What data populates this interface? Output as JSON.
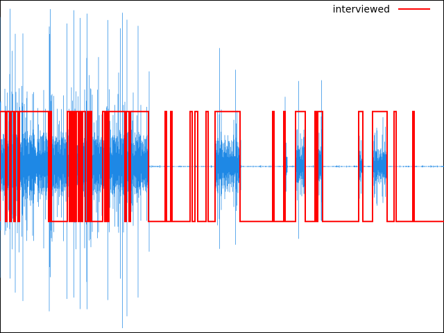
{
  "chart_data": {
    "type": "line",
    "title": "",
    "xlabel": "",
    "ylabel": "",
    "grid": false,
    "legend_position": "top-right",
    "xlim": [
      0,
      640
    ],
    "ylim": [
      -1.0,
      1.0
    ],
    "colors": {
      "waveform": "#1e88e5",
      "labels": "#ff0000",
      "frame": "#000000",
      "background": "#ffffff"
    },
    "series": [
      {
        "name": "interviewed",
        "kind": "binary-step",
        "low": -0.33,
        "high": 0.33,
        "on_intervals": [
          [
            0,
            8
          ],
          [
            10,
            14
          ],
          [
            16,
            20
          ],
          [
            22,
            26
          ],
          [
            28,
            70
          ],
          [
            72,
            74
          ],
          [
            97,
            100
          ],
          [
            102,
            104
          ],
          [
            106,
            108
          ],
          [
            110,
            113
          ],
          [
            115,
            117
          ],
          [
            119,
            123
          ],
          [
            126,
            128
          ],
          [
            130,
            132
          ],
          [
            148,
            151
          ],
          [
            153,
            155
          ],
          [
            157,
            180
          ],
          [
            182,
            186
          ],
          [
            188,
            214
          ],
          [
            238,
            240
          ],
          [
            246,
            248
          ],
          [
            274,
            277
          ],
          [
            281,
            285
          ],
          [
            297,
            300
          ],
          [
            310,
            346
          ],
          [
            393,
            395
          ],
          [
            409,
            411
          ],
          [
            426,
            440
          ],
          [
            454,
            456
          ],
          [
            458,
            465
          ],
          [
            517,
            523
          ],
          [
            537,
            558
          ],
          [
            568,
            571
          ],
          [
            595,
            597
          ]
        ]
      },
      {
        "kind": "waveform",
        "baseline": 0,
        "bursts": [
          {
            "start": 0,
            "end": 215,
            "amplitude": 0.95
          },
          {
            "start": 310,
            "end": 347,
            "amplitude": 0.75
          },
          {
            "start": 409,
            "end": 414,
            "amplitude": 0.45
          },
          {
            "start": 426,
            "end": 440,
            "amplitude": 0.6
          },
          {
            "start": 454,
            "end": 465,
            "amplitude": 0.65
          },
          {
            "start": 517,
            "end": 523,
            "amplitude": 0.5
          },
          {
            "start": 537,
            "end": 558,
            "amplitude": 0.5
          }
        ]
      }
    ]
  }
}
